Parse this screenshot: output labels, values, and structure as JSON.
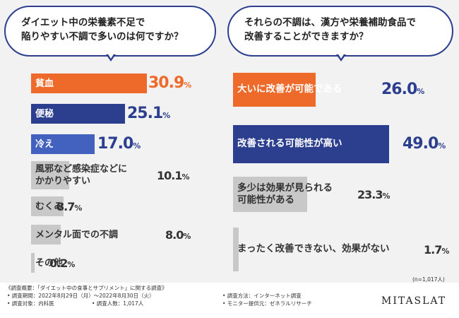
{
  "left": {
    "question": [
      "ダイエット中の栄養素不足で",
      "陥りやすい不調で多いのは何ですか？"
    ]
  },
  "right": {
    "question": [
      "それらの不調は、漢方や栄養補助食品で",
      "改善することができますか？"
    ]
  },
  "chart_data": [
    {
      "type": "bar",
      "categories": [
        "貧血",
        "便秘",
        "冷え",
        "風邪など感染症などにかかりやすい",
        "むくみ",
        "メンタル面での不調",
        "その他"
      ],
      "category_lines": [
        [
          "貧血"
        ],
        [
          "便秘"
        ],
        [
          "冷え"
        ],
        [
          "風邪など感染症などに",
          "かかりやすい"
        ],
        [
          "むくみ"
        ],
        [
          "メンタル面での不調"
        ],
        [
          "その他"
        ]
      ],
      "values": [
        30.9,
        25.1,
        17.0,
        10.1,
        8.7,
        8.0,
        0.2
      ],
      "value_labels": [
        "30.9",
        "25.1",
        "17.0",
        "10.1",
        "8.7",
        "8.0",
        "0.2"
      ],
      "colors": [
        "#ee6a2a",
        "#2c3f8f",
        "#4361bf",
        "#c8c8c8",
        "#c8c8c8",
        "#c8c8c8",
        "#c8c8c8"
      ],
      "unit": "%"
    },
    {
      "type": "bar",
      "categories": [
        "大いに改善が可能である",
        "改善される可能性が高い",
        "多少は効果が見られる可能性がある",
        "まったく改善できない、効果がない"
      ],
      "category_lines": [
        [
          "大いに改善が可能である"
        ],
        [
          "改善される可能性が高い"
        ],
        [
          "多少は効果が見られる",
          "可能性がある"
        ],
        [
          "まったく改善できない、効果がない"
        ]
      ],
      "values": [
        26.0,
        49.0,
        23.3,
        1.7
      ],
      "value_labels": [
        "26.0",
        "49.0",
        "23.3",
        "1.7"
      ],
      "colors": [
        "#ee6a2a",
        "#2c3f8f",
        "#c8c8c8",
        "#c8c8c8"
      ],
      "unit": "%"
    }
  ],
  "n_note": "(n=1,017人)",
  "footer": {
    "title": "《調査概要：「ダイエット中の食事とサプリメント」に関する調査》",
    "period": "• 調査期間：2022年8月29日（月）〜2022年8月30日（火）",
    "target": "• 調査対象：内科医",
    "count": "• 調査人数：1,017人",
    "method": "• 調査方法：インターネット調査",
    "provider": "• モニター提供元：ゼネラルリサーチ",
    "logo": "MITASLAT"
  }
}
